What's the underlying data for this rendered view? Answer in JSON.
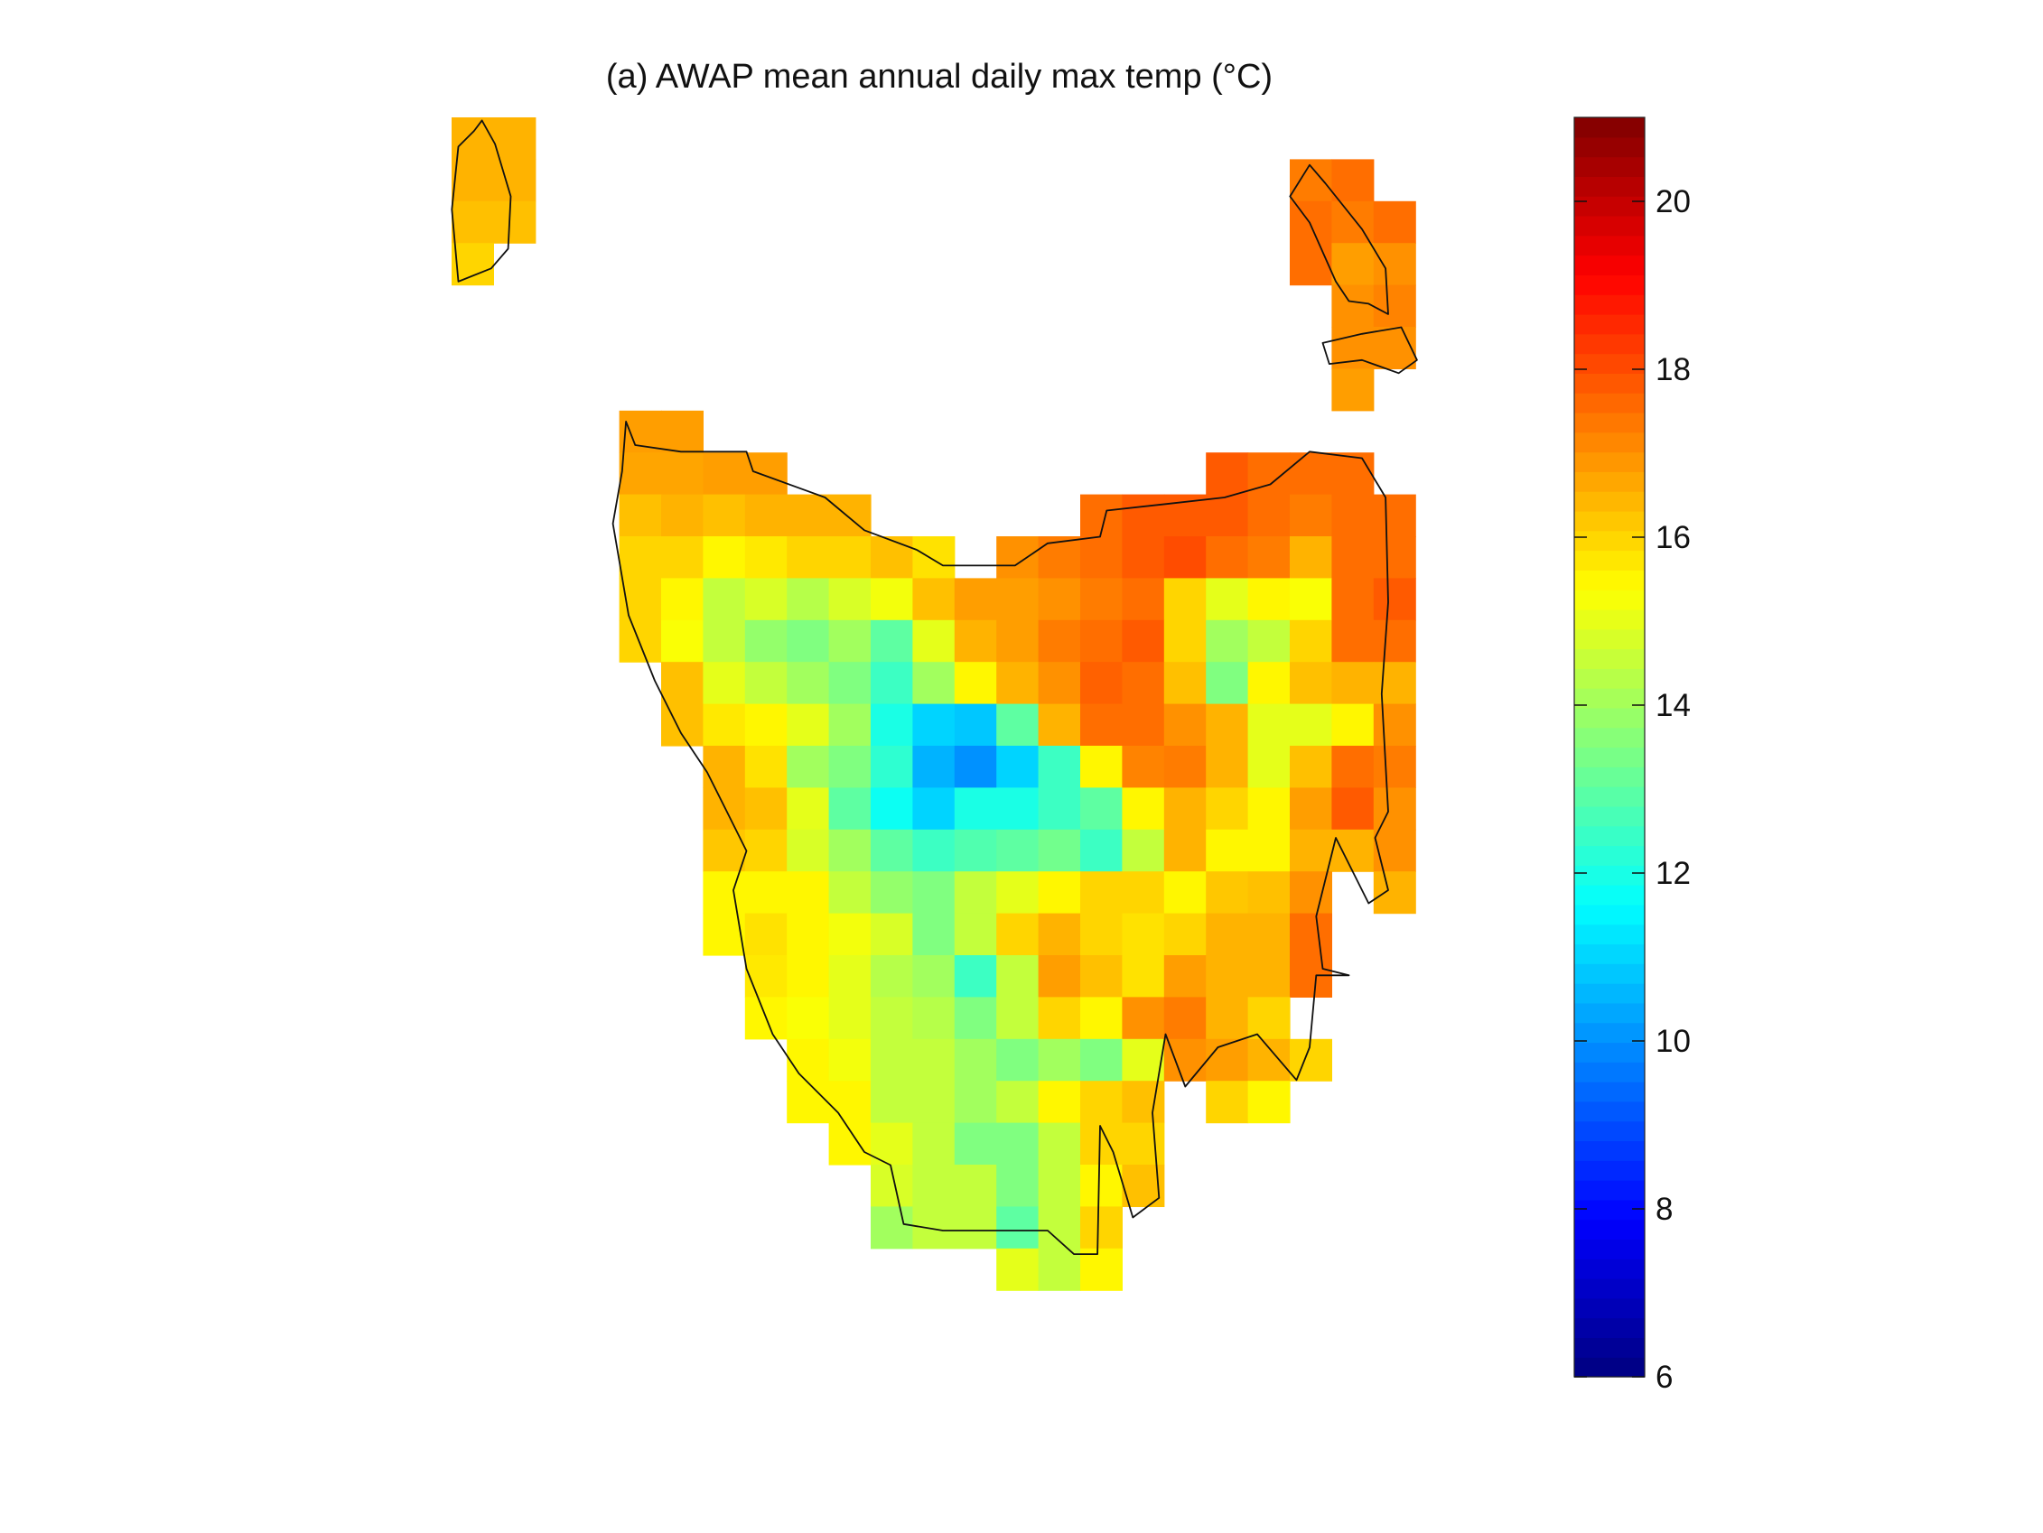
{
  "chart_data": {
    "type": "heatmap",
    "title": "(a) AWAP mean annual daily max temp (°C)",
    "colormap": "jet",
    "clim": [
      6,
      21
    ],
    "colorbar": {
      "location": "right",
      "ticks": [
        6,
        8,
        10,
        12,
        14,
        16,
        18,
        20
      ],
      "tick_labels": [
        "6",
        "8",
        "10",
        "12",
        "14",
        "16",
        "18",
        "20"
      ]
    },
    "axes_visible": false,
    "coastline": true,
    "grid_values": [
      [
        16.5,
        16.5,
        null,
        null,
        null,
        null,
        null,
        null,
        null,
        null,
        null,
        null,
        null,
        null,
        null,
        null,
        null,
        null,
        null,
        null,
        null,
        null,
        null
      ],
      [
        16.5,
        16.5,
        null,
        null,
        null,
        null,
        null,
        null,
        null,
        null,
        null,
        null,
        null,
        null,
        null,
        null,
        null,
        null,
        null,
        null,
        17.3,
        17.5,
        null
      ],
      [
        16.3,
        16.3,
        null,
        null,
        null,
        null,
        null,
        null,
        null,
        null,
        null,
        null,
        null,
        null,
        null,
        null,
        null,
        null,
        null,
        null,
        17.5,
        17.3,
        17.5
      ],
      [
        16,
        null,
        null,
        null,
        null,
        null,
        null,
        null,
        null,
        null,
        null,
        null,
        null,
        null,
        null,
        null,
        null,
        null,
        null,
        null,
        17.5,
        16.8,
        17
      ],
      [
        null,
        null,
        null,
        null,
        null,
        null,
        null,
        null,
        null,
        null,
        null,
        null,
        null,
        null,
        null,
        null,
        null,
        null,
        null,
        null,
        null,
        17,
        17.2
      ],
      [
        null,
        null,
        null,
        null,
        null,
        null,
        null,
        null,
        null,
        null,
        null,
        null,
        null,
        null,
        null,
        null,
        null,
        null,
        null,
        null,
        null,
        17,
        17
      ],
      [
        null,
        null,
        null,
        null,
        null,
        null,
        null,
        null,
        null,
        null,
        null,
        null,
        null,
        null,
        null,
        null,
        null,
        null,
        null,
        null,
        null,
        16.8,
        null
      ],
      [
        null,
        null,
        null,
        null,
        16.8,
        16.8,
        null,
        null,
        null,
        null,
        null,
        null,
        null,
        null,
        null,
        null,
        null,
        null,
        null,
        null,
        null,
        null,
        null
      ],
      [
        null,
        null,
        null,
        null,
        16.7,
        16.7,
        16.8,
        16.8,
        null,
        null,
        null,
        null,
        null,
        null,
        null,
        null,
        null,
        null,
        17.8,
        17.5,
        17.5,
        17.5,
        null
      ],
      [
        null,
        null,
        null,
        null,
        16.3,
        16.5,
        16.3,
        16.5,
        16.5,
        16.5,
        null,
        null,
        null,
        null,
        null,
        17.5,
        17.8,
        17.8,
        17.8,
        17.5,
        17.3,
        17.5,
        17.5
      ],
      [
        null,
        null,
        null,
        null,
        16,
        16,
        15.5,
        15.7,
        16,
        16,
        16.3,
        15.8,
        null,
        17,
        17.3,
        17.5,
        17.8,
        18,
        17.5,
        17.3,
        16.5,
        17.5,
        17.5
      ],
      [
        null,
        null,
        null,
        null,
        16,
        15.5,
        14.5,
        14.8,
        14.3,
        14.8,
        15.2,
        16.3,
        16.8,
        16.8,
        17,
        17.3,
        17.5,
        16,
        15,
        15.5,
        15.3,
        17.5,
        17.8
      ],
      [
        null,
        null,
        null,
        null,
        16,
        15.3,
        14.5,
        13.8,
        13.5,
        14,
        13,
        15,
        16.5,
        16.8,
        17.3,
        17.5,
        17.8,
        16,
        14,
        14.5,
        16,
        17.5,
        17.5
      ],
      [
        null,
        null,
        null,
        null,
        null,
        16.3,
        15,
        14.5,
        14,
        13.5,
        12.5,
        14,
        15.5,
        16.5,
        17,
        17.7,
        17.5,
        16.3,
        13.5,
        15.5,
        16.3,
        16.5,
        16.5
      ],
      [
        null,
        null,
        null,
        null,
        null,
        16.3,
        15.7,
        15.5,
        15,
        14,
        12,
        11,
        10.8,
        13,
        16.5,
        17.5,
        17.5,
        17,
        16.5,
        15,
        15,
        15.5,
        17
      ],
      [
        null,
        null,
        null,
        null,
        null,
        null,
        16.5,
        15.8,
        14,
        13.5,
        12.3,
        10.5,
        10,
        11,
        12.5,
        15.5,
        17.2,
        17.3,
        16.5,
        15,
        16.3,
        17.5,
        17.3
      ],
      [
        null,
        null,
        null,
        null,
        null,
        null,
        16.5,
        16.3,
        15,
        13,
        11.8,
        11,
        12,
        12,
        12.5,
        13,
        15.5,
        16.5,
        16,
        15.5,
        16.8,
        17.8,
        17
      ],
      [
        null,
        null,
        null,
        null,
        null,
        null,
        16.2,
        16,
        14.8,
        14,
        13,
        12.5,
        12.8,
        13,
        13.3,
        12.5,
        14.5,
        16.5,
        15.5,
        15.5,
        16.5,
        16.5,
        17
      ],
      [
        null,
        null,
        null,
        null,
        null,
        null,
        15.5,
        15.5,
        15.5,
        14.5,
        13.8,
        13.5,
        14.5,
        15,
        15.5,
        16,
        16,
        15.5,
        16.2,
        16.3,
        17,
        null,
        16.5
      ],
      [
        null,
        null,
        null,
        null,
        null,
        null,
        15.5,
        15.8,
        15.5,
        15.2,
        14.8,
        13.5,
        14.5,
        16,
        16.5,
        16,
        15.8,
        16,
        16.5,
        16.5,
        17.5,
        null,
        null
      ],
      [
        null,
        null,
        null,
        null,
        null,
        null,
        null,
        15.7,
        15.5,
        15,
        14.3,
        14,
        12.5,
        14.5,
        16.8,
        16.3,
        15.8,
        16.8,
        16.5,
        16.5,
        17.5,
        null,
        null
      ],
      [
        null,
        null,
        null,
        null,
        null,
        null,
        null,
        15.5,
        15.3,
        15,
        14.5,
        14.3,
        13.5,
        14.5,
        16,
        15.5,
        17,
        17.3,
        16.5,
        16,
        null,
        null,
        null
      ],
      [
        null,
        null,
        null,
        null,
        null,
        null,
        null,
        null,
        15.5,
        15.2,
        14.5,
        14.5,
        14,
        13.5,
        14,
        13.5,
        15,
        17,
        16.8,
        16.5,
        16,
        null,
        null
      ],
      [
        null,
        null,
        null,
        null,
        null,
        null,
        null,
        null,
        15.5,
        15.5,
        14.5,
        14.5,
        14,
        14.5,
        15.5,
        16,
        16.3,
        null,
        16,
        15.5,
        null,
        null,
        null
      ],
      [
        null,
        null,
        null,
        null,
        null,
        null,
        null,
        null,
        null,
        15.5,
        15,
        14.5,
        13.5,
        13.5,
        14.5,
        16,
        16,
        null,
        null,
        null,
        null,
        null,
        null
      ],
      [
        null,
        null,
        null,
        null,
        null,
        null,
        null,
        null,
        null,
        null,
        14.8,
        14.5,
        14.5,
        13.5,
        14.5,
        15.5,
        16.3,
        null,
        null,
        null,
        null,
        null,
        null
      ],
      [
        null,
        null,
        null,
        null,
        null,
        null,
        null,
        null,
        null,
        null,
        14,
        14.5,
        14.5,
        13,
        14.5,
        16,
        null,
        null,
        null,
        null,
        null,
        null,
        null
      ],
      [
        null,
        null,
        null,
        null,
        null,
        null,
        null,
        null,
        null,
        null,
        null,
        null,
        null,
        15,
        14.5,
        15.5,
        null,
        null,
        null,
        null,
        null,
        null,
        null
      ]
    ]
  }
}
